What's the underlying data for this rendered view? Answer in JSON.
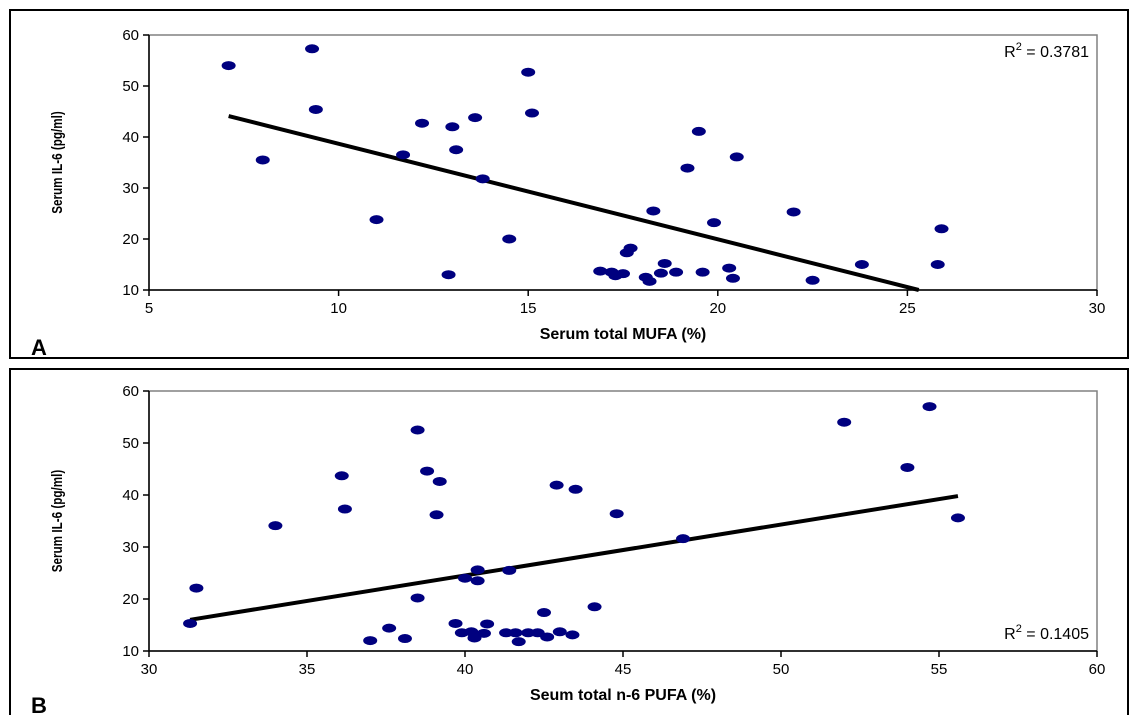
{
  "chart_data": [
    {
      "type": "scatter",
      "panel_label": "A",
      "xlabel": "Serum total MUFA (%)",
      "ylabel": "Serum IL-6 (pg/ml)",
      "xlim": [
        5,
        30
      ],
      "ylim": [
        10,
        60
      ],
      "xticks": [
        5,
        10,
        15,
        20,
        25,
        30
      ],
      "yticks": [
        10,
        20,
        30,
        40,
        50,
        60
      ],
      "annotation": {
        "r2_label": "R",
        "r2_sup": "2",
        "r2_value": " = 0.3781",
        "position": "top-right"
      },
      "point_color": "#00007f",
      "trendline": {
        "x": [
          7.1,
          25.3
        ],
        "y": [
          44.1,
          10.0
        ]
      },
      "x": [
        7.1,
        8.0,
        9.3,
        9.4,
        11.0,
        11.7,
        12.2,
        12.9,
        13.0,
        13.1,
        13.6,
        13.8,
        14.5,
        15.0,
        15.1,
        16.9,
        17.2,
        17.3,
        17.5,
        17.6,
        17.7,
        18.1,
        18.2,
        18.3,
        18.5,
        18.6,
        18.9,
        19.2,
        19.5,
        19.6,
        19.9,
        20.3,
        20.4,
        20.5,
        22.0,
        22.5,
        23.8,
        25.8,
        25.9
      ],
      "y": [
        54.0,
        35.5,
        57.3,
        45.4,
        23.8,
        36.5,
        42.7,
        13.0,
        42.0,
        37.5,
        43.8,
        31.8,
        20.0,
        52.7,
        44.7,
        13.7,
        13.5,
        12.8,
        13.2,
        17.3,
        18.2,
        12.5,
        11.7,
        25.5,
        13.3,
        15.2,
        13.5,
        33.9,
        41.1,
        13.5,
        23.2,
        14.3,
        12.3,
        36.1,
        25.3,
        11.9,
        15.0,
        15.0,
        22.0
      ]
    },
    {
      "type": "scatter",
      "panel_label": "B",
      "xlabel": "Seum total n-6 PUFA (%)",
      "ylabel": "Serum IL-6 (pg/ml)",
      "xlim": [
        30,
        60
      ],
      "ylim": [
        10,
        60
      ],
      "xticks": [
        30,
        35,
        40,
        45,
        50,
        55,
        60
      ],
      "yticks": [
        10,
        20,
        30,
        40,
        50,
        60
      ],
      "annotation": {
        "r2_label": "R",
        "r2_sup": "2",
        "r2_value": " = 0.1405",
        "position": "bottom-right"
      },
      "point_color": "#00007f",
      "trendline": {
        "x": [
          31.3,
          55.6
        ],
        "y": [
          16.0,
          39.8
        ]
      },
      "x": [
        31.3,
        31.5,
        34.0,
        36.1,
        36.2,
        37.0,
        37.6,
        38.1,
        38.5,
        38.5,
        38.8,
        39.1,
        39.2,
        39.7,
        39.9,
        40.0,
        40.2,
        40.3,
        40.4,
        40.4,
        40.6,
        40.7,
        41.3,
        41.4,
        41.6,
        41.7,
        42.0,
        42.3,
        42.5,
        42.6,
        42.9,
        43.0,
        43.4,
        43.5,
        44.1,
        44.8,
        46.9,
        52.0,
        54.0,
        54.7,
        55.6
      ],
      "y": [
        15.3,
        22.1,
        34.1,
        43.7,
        37.3,
        12.0,
        14.4,
        12.4,
        52.5,
        20.2,
        44.6,
        36.2,
        42.6,
        15.3,
        13.5,
        24.0,
        13.7,
        12.5,
        25.6,
        23.5,
        13.4,
        15.2,
        13.5,
        25.5,
        13.5,
        11.8,
        13.5,
        13.5,
        17.4,
        12.7,
        41.9,
        13.7,
        13.1,
        41.1,
        18.5,
        36.4,
        31.6,
        54.0,
        45.3,
        57.0,
        35.6
      ]
    }
  ]
}
